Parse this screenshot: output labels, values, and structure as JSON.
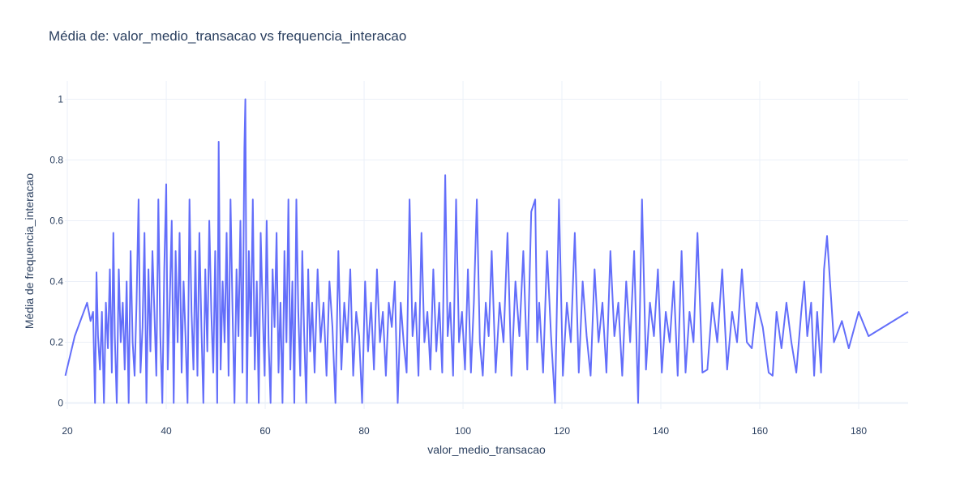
{
  "chart_data": {
    "type": "line",
    "title": "Média de: valor_medio_transacao vs frequencia_interacao",
    "xlabel": "valor_medio_transacao",
    "ylabel": "Média de frequencia_interacao",
    "xlim": [
      19.5,
      190
    ],
    "ylim": [
      -0.02,
      1.06
    ],
    "x_ticks": [
      20,
      40,
      60,
      80,
      100,
      120,
      140,
      160,
      180
    ],
    "y_ticks": [
      0,
      0.2,
      0.4,
      0.6,
      0.8,
      1
    ],
    "y_tick_labels": [
      "0",
      "0.2",
      "0.4",
      "0.6",
      "0.8",
      "1"
    ],
    "grid": true,
    "series": [
      {
        "color": "#636efa",
        "x": [
          19.6,
          21.5,
          24.0,
          24.7,
          25.2,
          25.6,
          25.9,
          26.2,
          26.6,
          27.0,
          27.4,
          27.8,
          28.2,
          28.6,
          29.0,
          29.3,
          29.6,
          30.0,
          30.4,
          30.8,
          31.2,
          31.6,
          32.0,
          32.4,
          32.8,
          33.2,
          33.6,
          34.0,
          34.4,
          34.8,
          35.2,
          35.6,
          36.0,
          36.4,
          36.8,
          37.2,
          37.6,
          38.0,
          38.4,
          38.8,
          39.2,
          39.6,
          40.0,
          40.3,
          40.7,
          41.1,
          41.5,
          41.9,
          42.3,
          42.7,
          43.1,
          43.5,
          43.9,
          44.3,
          44.7,
          45.1,
          45.5,
          45.9,
          46.3,
          46.7,
          47.1,
          47.5,
          47.9,
          48.3,
          48.7,
          49.1,
          49.5,
          49.9,
          50.3,
          50.6,
          51.0,
          51.4,
          51.8,
          52.2,
          52.6,
          53.0,
          53.4,
          53.8,
          54.2,
          54.6,
          55.0,
          55.4,
          55.8,
          56.0,
          56.3,
          56.7,
          57.1,
          57.5,
          57.9,
          58.3,
          58.7,
          59.1,
          59.5,
          59.9,
          60.3,
          60.7,
          61.1,
          61.5,
          61.9,
          62.3,
          62.7,
          63.1,
          63.5,
          63.9,
          64.3,
          64.7,
          65.1,
          65.5,
          65.9,
          66.3,
          66.7,
          67.1,
          67.5,
          67.9,
          68.3,
          68.7,
          69.1,
          69.5,
          70.0,
          70.6,
          71.2,
          71.8,
          72.4,
          73.0,
          73.6,
          74.2,
          74.8,
          75.4,
          76.0,
          76.6,
          77.2,
          77.8,
          78.4,
          79.0,
          79.6,
          80.2,
          80.8,
          81.4,
          82.0,
          82.6,
          83.2,
          83.8,
          84.4,
          85.0,
          85.6,
          86.2,
          86.8,
          87.4,
          88.0,
          88.6,
          89.2,
          89.8,
          90.4,
          91.0,
          91.6,
          92.2,
          92.8,
          93.4,
          94.0,
          94.6,
          95.2,
          95.8,
          96.4,
          96.9,
          97.4,
          98.0,
          98.6,
          99.2,
          99.8,
          100.4,
          101.0,
          101.6,
          102.2,
          102.8,
          103.4,
          104.0,
          104.6,
          105.2,
          105.8,
          106.6,
          107.4,
          108.2,
          109.0,
          109.8,
          110.6,
          111.4,
          112.2,
          113.0,
          113.8,
          114.6,
          115.0,
          115.4,
          116.2,
          117.0,
          117.8,
          118.6,
          119.4,
          120.2,
          121.0,
          121.8,
          122.6,
          123.4,
          124.2,
          125.0,
          125.8,
          126.6,
          127.4,
          128.2,
          129.0,
          129.8,
          130.6,
          131.4,
          132.2,
          133.0,
          133.8,
          134.6,
          135.4,
          136.2,
          137.0,
          137.8,
          138.6,
          139.4,
          140.2,
          141.0,
          141.8,
          142.6,
          143.4,
          144.2,
          145.0,
          145.8,
          146.6,
          147.4,
          148.4,
          149.4,
          150.4,
          151.4,
          152.4,
          153.4,
          154.4,
          155.4,
          156.4,
          157.4,
          158.4,
          159.4,
          160.6,
          161.8,
          162.6,
          163.4,
          164.4,
          165.4,
          166.4,
          167.4,
          168.4,
          169.0,
          169.6,
          170.4,
          171.0,
          171.6,
          172.4,
          173.0,
          173.6,
          175.0,
          176.6,
          178.0,
          180.0,
          182.0,
          184.0,
          186.0,
          188.0,
          190.0
        ],
        "y": [
          0.09,
          0.22,
          0.33,
          0.27,
          0.3,
          0.0,
          0.43,
          0.22,
          0.11,
          0.3,
          0.0,
          0.33,
          0.18,
          0.44,
          0.1,
          0.56,
          0.22,
          0.0,
          0.44,
          0.2,
          0.33,
          0.11,
          0.4,
          0.0,
          0.5,
          0.2,
          0.09,
          0.33,
          0.67,
          0.1,
          0.25,
          0.56,
          0.0,
          0.44,
          0.17,
          0.5,
          0.3,
          0.09,
          0.67,
          0.22,
          0.0,
          0.44,
          0.72,
          0.11,
          0.33,
          0.6,
          0.0,
          0.5,
          0.2,
          0.56,
          0.1,
          0.4,
          0.22,
          0.0,
          0.67,
          0.3,
          0.11,
          0.5,
          0.09,
          0.56,
          0.25,
          0.0,
          0.44,
          0.17,
          0.6,
          0.3,
          0.1,
          0.5,
          0.0,
          0.86,
          0.11,
          0.4,
          0.2,
          0.56,
          0.09,
          0.67,
          0.3,
          0.0,
          0.44,
          0.22,
          0.6,
          0.1,
          0.84,
          1.0,
          0.0,
          0.5,
          0.22,
          0.67,
          0.11,
          0.4,
          0.0,
          0.56,
          0.3,
          0.09,
          0.6,
          0.2,
          0.0,
          0.44,
          0.25,
          0.56,
          0.1,
          0.33,
          0.0,
          0.5,
          0.2,
          0.67,
          0.11,
          0.4,
          0.0,
          0.67,
          0.3,
          0.09,
          0.5,
          0.22,
          0.0,
          0.44,
          0.17,
          0.33,
          0.1,
          0.44,
          0.2,
          0.33,
          0.09,
          0.4,
          0.25,
          0.0,
          0.5,
          0.11,
          0.33,
          0.2,
          0.44,
          0.09,
          0.3,
          0.22,
          0.0,
          0.4,
          0.17,
          0.33,
          0.11,
          0.44,
          0.2,
          0.3,
          0.09,
          0.33,
          0.25,
          0.4,
          0.0,
          0.33,
          0.2,
          0.1,
          0.67,
          0.22,
          0.33,
          0.09,
          0.56,
          0.2,
          0.3,
          0.11,
          0.44,
          0.17,
          0.33,
          0.1,
          0.75,
          0.22,
          0.33,
          0.09,
          0.67,
          0.2,
          0.3,
          0.11,
          0.44,
          0.1,
          0.33,
          0.67,
          0.2,
          0.09,
          0.33,
          0.22,
          0.5,
          0.1,
          0.33,
          0.2,
          0.56,
          0.09,
          0.4,
          0.22,
          0.5,
          0.11,
          0.63,
          0.67,
          0.2,
          0.33,
          0.1,
          0.5,
          0.22,
          0.0,
          0.67,
          0.09,
          0.33,
          0.2,
          0.56,
          0.1,
          0.4,
          0.22,
          0.09,
          0.44,
          0.2,
          0.33,
          0.1,
          0.5,
          0.22,
          0.33,
          0.09,
          0.4,
          0.2,
          0.5,
          0.0,
          0.67,
          0.11,
          0.33,
          0.22,
          0.44,
          0.1,
          0.3,
          0.2,
          0.4,
          0.09,
          0.5,
          0.1,
          0.3,
          0.2,
          0.56,
          0.1,
          0.11,
          0.33,
          0.2,
          0.44,
          0.11,
          0.3,
          0.2,
          0.44,
          0.2,
          0.18,
          0.33,
          0.25,
          0.1,
          0.09,
          0.3,
          0.18,
          0.33,
          0.2,
          0.1,
          0.3,
          0.4,
          0.22,
          0.33,
          0.09,
          0.3,
          0.1,
          0.44,
          0.55,
          0.2,
          0.27,
          0.18,
          0.3,
          0.22,
          0.24,
          0.26,
          0.28,
          0.3
        ]
      }
    ]
  }
}
